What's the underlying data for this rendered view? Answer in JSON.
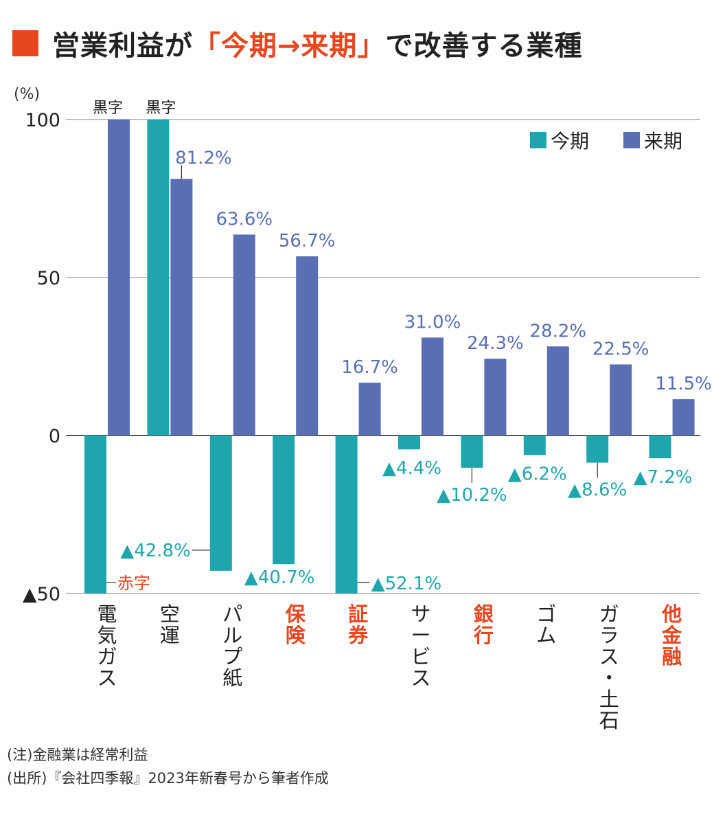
{
  "title": {
    "prefix": "営業利益が",
    "highlight": "「今期→来期」",
    "suffix": "で改善する業種"
  },
  "colors": {
    "accent": "#e8461f",
    "current": "#1fa6ac",
    "next": "#5a6eb4",
    "text": "#222222",
    "grid": "#9a9a9a"
  },
  "chart_data": {
    "type": "bar",
    "unit_label": "(%)",
    "ylim": [
      -50,
      100
    ],
    "yticks": [
      {
        "value": 100,
        "label": "100"
      },
      {
        "value": 50,
        "label": "50"
      },
      {
        "value": 0,
        "label": "0"
      },
      {
        "value": -50,
        "label": "▲50"
      }
    ],
    "grid": true,
    "legend": {
      "position": "top-right"
    },
    "series": [
      {
        "name": "今期",
        "color": "#1fa6ac"
      },
      {
        "name": "来期",
        "color": "#5a6eb4"
      }
    ],
    "categories": [
      {
        "name": "電気ガス",
        "highlight": false,
        "current": -50,
        "next": 100,
        "current_label": "赤字",
        "next_label": "黒字",
        "current_note": "red_deficit",
        "next_note": "capped"
      },
      {
        "name": "空運",
        "highlight": false,
        "current": 100,
        "next": 81.2,
        "current_label": "黒字",
        "next_label": "81.2%",
        "current_note": "capped",
        "next_note": ""
      },
      {
        "name": "パルプ紙",
        "highlight": false,
        "current": -42.8,
        "next": 63.6,
        "current_label": "▲42.8%",
        "next_label": "63.6%"
      },
      {
        "name": "保険",
        "highlight": true,
        "current": -40.7,
        "next": 56.7,
        "current_label": "▲40.7%",
        "next_label": "56.7%"
      },
      {
        "name": "証券",
        "highlight": true,
        "current": -52.1,
        "next": 16.7,
        "current_label": "▲52.1%",
        "next_label": "16.7%"
      },
      {
        "name": "サービス",
        "highlight": false,
        "current": -4.4,
        "next": 31.0,
        "current_label": "▲4.4%",
        "next_label": "31.0%"
      },
      {
        "name": "銀行",
        "highlight": true,
        "current": -10.2,
        "next": 24.3,
        "current_label": "▲10.2%",
        "next_label": "24.3%"
      },
      {
        "name": "ゴム",
        "highlight": false,
        "current": -6.2,
        "next": 28.2,
        "current_label": "▲6.2%",
        "next_label": "28.2%"
      },
      {
        "name": "ガラス・土石",
        "highlight": false,
        "current": -8.6,
        "next": 22.5,
        "current_label": "▲8.6%",
        "next_label": "22.5%"
      },
      {
        "name": "他金融",
        "highlight": true,
        "current": -7.2,
        "next": 11.5,
        "current_label": "▲7.2%",
        "next_label": "11.5%"
      }
    ]
  },
  "notes": [
    "(注)金融業は経常利益",
    "(出所)『会社四季報』2023年新春号から筆者作成"
  ]
}
